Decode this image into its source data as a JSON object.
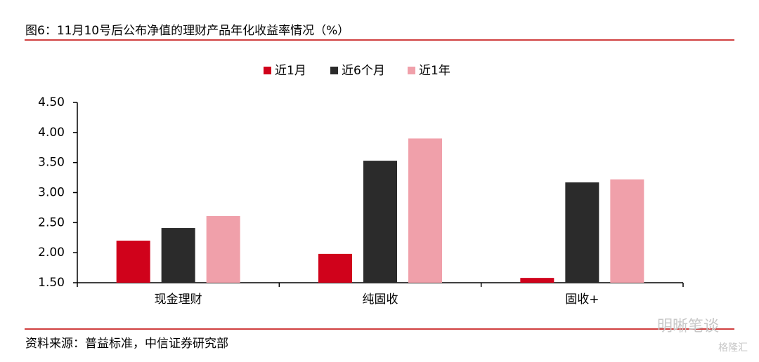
{
  "chart_data": {
    "type": "bar",
    "title": "图6：11月10号后公布净值的理财产品年化收益率情况（%）",
    "categories": [
      "现金理财",
      "纯固收",
      "固收+"
    ],
    "series": [
      {
        "name": "近1月",
        "color": "#d0021b",
        "values": [
          2.2,
          1.98,
          1.58
        ]
      },
      {
        "name": "近6个月",
        "color": "#2b2b2b",
        "values": [
          2.41,
          3.53,
          3.17
        ]
      },
      {
        "name": "近1年",
        "color": "#f0a0aa",
        "values": [
          2.61,
          3.9,
          3.22
        ]
      }
    ],
    "ylim": [
      1.5,
      4.5
    ],
    "yticks": [
      {
        "value": 1.5,
        "label": "1.50"
      },
      {
        "value": 2.0,
        "label": "2.00"
      },
      {
        "value": 2.5,
        "label": "2.50"
      },
      {
        "value": 3.0,
        "label": "3.00"
      },
      {
        "value": 3.5,
        "label": "3.50"
      },
      {
        "value": 4.0,
        "label": "4.00"
      },
      {
        "value": 4.5,
        "label": "4.50"
      }
    ],
    "grid": false,
    "legend": "top"
  },
  "source": "资料来源：普益标准，中信证券研究部",
  "watermark": [
    "明晰笔谈",
    "格隆汇"
  ]
}
